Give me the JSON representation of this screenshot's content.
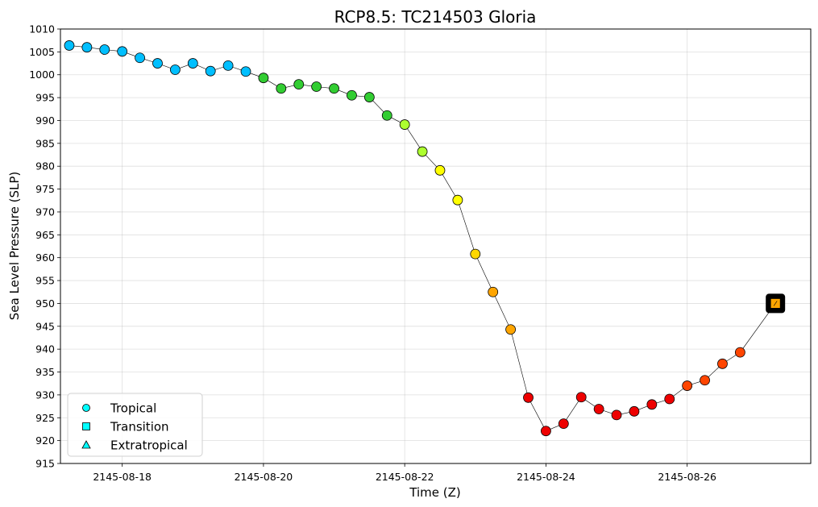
{
  "chart_data": {
    "type": "scatter",
    "title": "RCP8.5: TC214503 Gloria",
    "xlabel": "Time (Z)",
    "ylabel": "Sea Level Pressure (SLP)",
    "ylim": [
      915,
      1010
    ],
    "ytick_step": 5,
    "xlim": [
      "2145-08-17 03:00",
      "2145-08-27 18:00"
    ],
    "xticks": [
      "2145-08-18",
      "2145-08-20",
      "2145-08-22",
      "2145-08-24",
      "2145-08-26"
    ],
    "grid": true,
    "legend_position": "lower-left",
    "legend": [
      {
        "label": "Tropical",
        "marker": "circle"
      },
      {
        "label": "Transition",
        "marker": "square"
      },
      {
        "label": "Extratropical",
        "marker": "triangle"
      }
    ],
    "legend_marker_color": "#00ffff",
    "line_color": "#000000",
    "points": [
      {
        "time": "2145-08-17 06:00",
        "slp": 1006.4,
        "color": "#00bfff",
        "marker": "circle"
      },
      {
        "time": "2145-08-17 12:00",
        "slp": 1006.0,
        "color": "#00bfff",
        "marker": "circle"
      },
      {
        "time": "2145-08-17 18:00",
        "slp": 1005.5,
        "color": "#00bfff",
        "marker": "circle"
      },
      {
        "time": "2145-08-18 00:00",
        "slp": 1005.1,
        "color": "#00bfff",
        "marker": "circle"
      },
      {
        "time": "2145-08-18 06:00",
        "slp": 1003.7,
        "color": "#00bfff",
        "marker": "circle"
      },
      {
        "time": "2145-08-18 12:00",
        "slp": 1002.5,
        "color": "#00bfff",
        "marker": "circle"
      },
      {
        "time": "2145-08-18 18:00",
        "slp": 1001.1,
        "color": "#00bfff",
        "marker": "circle"
      },
      {
        "time": "2145-08-19 00:00",
        "slp": 1002.5,
        "color": "#00bfff",
        "marker": "circle"
      },
      {
        "time": "2145-08-19 06:00",
        "slp": 1000.8,
        "color": "#00bfff",
        "marker": "circle"
      },
      {
        "time": "2145-08-19 12:00",
        "slp": 1002.0,
        "color": "#00bfff",
        "marker": "circle"
      },
      {
        "time": "2145-08-19 18:00",
        "slp": 1000.7,
        "color": "#00bfff",
        "marker": "circle"
      },
      {
        "time": "2145-08-20 00:00",
        "slp": 999.3,
        "color": "#32cd32",
        "marker": "circle"
      },
      {
        "time": "2145-08-20 06:00",
        "slp": 997.0,
        "color": "#32cd32",
        "marker": "circle"
      },
      {
        "time": "2145-08-20 12:00",
        "slp": 997.9,
        "color": "#32cd32",
        "marker": "circle"
      },
      {
        "time": "2145-08-20 18:00",
        "slp": 997.4,
        "color": "#32cd32",
        "marker": "circle"
      },
      {
        "time": "2145-08-21 00:00",
        "slp": 997.0,
        "color": "#32cd32",
        "marker": "circle"
      },
      {
        "time": "2145-08-21 06:00",
        "slp": 995.5,
        "color": "#32cd32",
        "marker": "circle"
      },
      {
        "time": "2145-08-21 12:00",
        "slp": 995.1,
        "color": "#32cd32",
        "marker": "circle"
      },
      {
        "time": "2145-08-21 18:00",
        "slp": 991.1,
        "color": "#32cd32",
        "marker": "circle"
      },
      {
        "time": "2145-08-22 00:00",
        "slp": 989.1,
        "color": "#adff2f",
        "marker": "circle"
      },
      {
        "time": "2145-08-22 06:00",
        "slp": 983.2,
        "color": "#adff2f",
        "marker": "circle"
      },
      {
        "time": "2145-08-22 12:00",
        "slp": 979.1,
        "color": "#ffff00",
        "marker": "circle"
      },
      {
        "time": "2145-08-22 18:00",
        "slp": 972.6,
        "color": "#ffff00",
        "marker": "circle"
      },
      {
        "time": "2145-08-23 00:00",
        "slp": 960.8,
        "color": "#ffd700",
        "marker": "circle"
      },
      {
        "time": "2145-08-23 06:00",
        "slp": 952.5,
        "color": "#ffa500",
        "marker": "circle"
      },
      {
        "time": "2145-08-23 12:00",
        "slp": 944.3,
        "color": "#ffa500",
        "marker": "circle"
      },
      {
        "time": "2145-08-23 18:00",
        "slp": 929.4,
        "color": "#ee0000",
        "marker": "circle"
      },
      {
        "time": "2145-08-24 00:00",
        "slp": 922.1,
        "color": "#ee0000",
        "marker": "circle"
      },
      {
        "time": "2145-08-24 06:00",
        "slp": 923.7,
        "color": "#ee0000",
        "marker": "circle"
      },
      {
        "time": "2145-08-24 12:00",
        "slp": 929.5,
        "color": "#ee0000",
        "marker": "circle"
      },
      {
        "time": "2145-08-24 18:00",
        "slp": 926.9,
        "color": "#ee0000",
        "marker": "circle"
      },
      {
        "time": "2145-08-25 00:00",
        "slp": 925.6,
        "color": "#ee0000",
        "marker": "circle"
      },
      {
        "time": "2145-08-25 06:00",
        "slp": 926.4,
        "color": "#ee0000",
        "marker": "circle"
      },
      {
        "time": "2145-08-25 12:00",
        "slp": 927.9,
        "color": "#ee0000",
        "marker": "circle"
      },
      {
        "time": "2145-08-25 18:00",
        "slp": 929.1,
        "color": "#ee0000",
        "marker": "circle"
      },
      {
        "time": "2145-08-26 00:00",
        "slp": 932.0,
        "color": "#ff4500",
        "marker": "circle"
      },
      {
        "time": "2145-08-26 06:00",
        "slp": 933.2,
        "color": "#ff4500",
        "marker": "circle"
      },
      {
        "time": "2145-08-26 12:00",
        "slp": 936.8,
        "color": "#ff4500",
        "marker": "circle"
      },
      {
        "time": "2145-08-26 18:00",
        "slp": 939.3,
        "color": "#ff4500",
        "marker": "circle"
      },
      {
        "time": "2145-08-27 06:00",
        "slp": 950.0,
        "color": "#ffa500",
        "marker": "square",
        "highlight": true
      }
    ]
  }
}
